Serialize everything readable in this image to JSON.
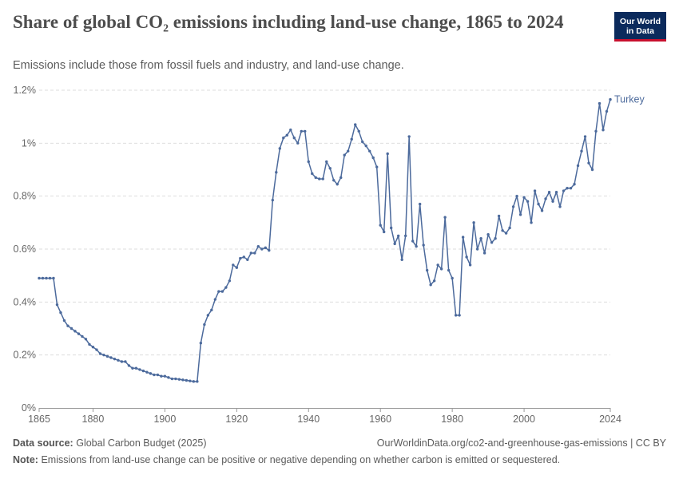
{
  "header": {
    "title": "Share of global CO₂ emissions including land-use change, 1865 to 2024",
    "subtitle": "Emissions include those from fossil fuels and industry, and land-use change."
  },
  "logo": {
    "line1": "Our World",
    "line2": "in Data"
  },
  "footer": {
    "source_label": "Data source:",
    "source_value": "Global Carbon Budget (2025)",
    "url": "OurWorldinData.org/co2-and-greenhouse-gas-emissions | CC BY",
    "note_label": "Note:",
    "note_value": "Emissions from land-use change can be positive or negative depending on whether carbon is emitted or sequestered."
  },
  "colors": {
    "series": "#4c6a9c",
    "grid": "#dddddd",
    "axis": "#999999",
    "title": "#4d4d4d"
  },
  "chart_data": {
    "type": "line",
    "title": "Share of global CO₂ emissions including land-use change, 1865 to 2024",
    "subtitle": "Emissions include those from fossil fuels and industry, and land-use change.",
    "xlabel": "",
    "ylabel": "",
    "xlim": [
      1865,
      2024
    ],
    "ylim": [
      0,
      1.2
    ],
    "y_unit": "%",
    "x_ticks": [
      1865,
      1880,
      1900,
      1920,
      1940,
      1960,
      1980,
      2000,
      2024
    ],
    "x_tick_labels": [
      "1865",
      "1880",
      "1900",
      "1920",
      "1940",
      "1960",
      "1980",
      "2000",
      "2024"
    ],
    "y_ticks": [
      0,
      0.2,
      0.4,
      0.6,
      0.8,
      1.0,
      1.2
    ],
    "y_tick_labels": [
      "0%",
      "0.2%",
      "0.4%",
      "0.6%",
      "0.8%",
      "1%",
      "1.2%"
    ],
    "grid": "horizontal dashed",
    "legend": "label at line end",
    "series": [
      {
        "name": "Turkey",
        "x": [
          1865,
          1866,
          1867,
          1868,
          1869,
          1870,
          1871,
          1872,
          1873,
          1874,
          1875,
          1876,
          1877,
          1878,
          1879,
          1880,
          1881,
          1882,
          1883,
          1884,
          1885,
          1886,
          1887,
          1888,
          1889,
          1890,
          1891,
          1892,
          1893,
          1894,
          1895,
          1896,
          1897,
          1898,
          1899,
          1900,
          1901,
          1902,
          1903,
          1904,
          1905,
          1906,
          1907,
          1908,
          1909,
          1910,
          1911,
          1912,
          1913,
          1914,
          1915,
          1916,
          1917,
          1918,
          1919,
          1920,
          1921,
          1922,
          1923,
          1924,
          1925,
          1926,
          1927,
          1928,
          1929,
          1930,
          1931,
          1932,
          1933,
          1934,
          1935,
          1936,
          1937,
          1938,
          1939,
          1940,
          1941,
          1942,
          1943,
          1944,
          1945,
          1946,
          1947,
          1948,
          1949,
          1950,
          1951,
          1952,
          1953,
          1954,
          1955,
          1956,
          1957,
          1958,
          1959,
          1960,
          1961,
          1962,
          1963,
          1964,
          1965,
          1966,
          1967,
          1968,
          1969,
          1970,
          1971,
          1972,
          1973,
          1974,
          1975,
          1976,
          1977,
          1978,
          1979,
          1980,
          1981,
          1982,
          1983,
          1984,
          1985,
          1986,
          1987,
          1988,
          1989,
          1990,
          1991,
          1992,
          1993,
          1994,
          1995,
          1996,
          1997,
          1998,
          1999,
          2000,
          2001,
          2002,
          2003,
          2004,
          2005,
          2006,
          2007,
          2008,
          2009,
          2010,
          2011,
          2012,
          2013,
          2014,
          2015,
          2016,
          2017,
          2018,
          2019,
          2020,
          2021,
          2022,
          2023,
          2024
        ],
        "values": [
          0.49,
          0.49,
          0.49,
          0.49,
          0.49,
          0.39,
          0.36,
          0.33,
          0.31,
          0.3,
          0.29,
          0.28,
          0.27,
          0.26,
          0.24,
          0.23,
          0.22,
          0.205,
          0.2,
          0.195,
          0.19,
          0.185,
          0.18,
          0.175,
          0.175,
          0.16,
          0.15,
          0.15,
          0.145,
          0.14,
          0.135,
          0.13,
          0.125,
          0.125,
          0.12,
          0.12,
          0.115,
          0.11,
          0.11,
          0.108,
          0.106,
          0.104,
          0.102,
          0.1,
          0.1,
          0.245,
          0.315,
          0.35,
          0.37,
          0.41,
          0.44,
          0.44,
          0.455,
          0.48,
          0.54,
          0.53,
          0.565,
          0.57,
          0.56,
          0.585,
          0.585,
          0.61,
          0.6,
          0.605,
          0.595,
          0.785,
          0.89,
          0.98,
          1.02,
          1.03,
          1.05,
          1.02,
          1.0,
          1.045,
          1.045,
          0.93,
          0.885,
          0.87,
          0.865,
          0.865,
          0.93,
          0.905,
          0.86,
          0.845,
          0.87,
          0.955,
          0.97,
          1.015,
          1.07,
          1.045,
          1.005,
          0.99,
          0.97,
          0.945,
          0.91,
          0.69,
          0.665,
          0.96,
          0.68,
          0.62,
          0.65,
          0.56,
          0.65,
          1.025,
          0.63,
          0.61,
          0.77,
          0.615,
          0.52,
          0.465,
          0.48,
          0.54,
          0.525,
          0.72,
          0.52,
          0.49,
          0.35,
          0.35,
          0.645,
          0.57,
          0.54,
          0.7,
          0.6,
          0.64,
          0.585,
          0.655,
          0.625,
          0.64,
          0.725,
          0.67,
          0.66,
          0.68,
          0.76,
          0.8,
          0.73,
          0.795,
          0.78,
          0.7,
          0.82,
          0.77,
          0.745,
          0.79,
          0.815,
          0.78,
          0.815,
          0.76,
          0.82,
          0.83,
          0.83,
          0.845,
          0.915,
          0.97,
          1.025,
          0.925,
          0.9,
          1.045,
          1.15,
          1.05,
          1.12,
          1.165
        ]
      }
    ]
  }
}
